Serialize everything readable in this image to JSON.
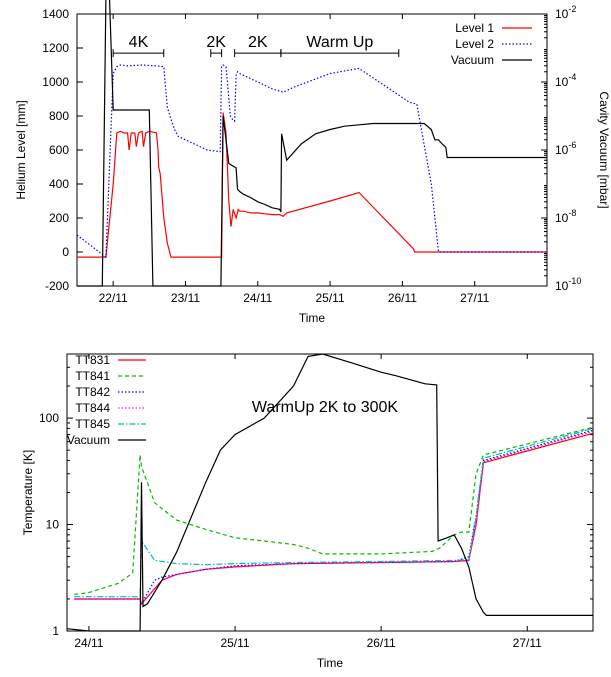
{
  "chart_data": [
    {
      "type": "line",
      "xlabel": "Time",
      "ylabel": "Helium Level [mm]",
      "y2label": "Cavity Vacuum [mbar]",
      "xlim": [
        21.5,
        28.0
      ],
      "ylim": [
        -200,
        1400
      ],
      "y2lim": [
        1e-10,
        0.01
      ],
      "y2scale": "log",
      "grid": false,
      "legend_position": "top-right",
      "x_ticks": [
        {
          "value": 22,
          "label": "22/11"
        },
        {
          "value": 23,
          "label": "23/11"
        },
        {
          "value": 24,
          "label": "24/11"
        },
        {
          "value": 25,
          "label": "25/11"
        },
        {
          "value": 26,
          "label": "26/11"
        },
        {
          "value": 27,
          "label": "27/11"
        }
      ],
      "y_ticks": [
        -200,
        0,
        200,
        400,
        600,
        800,
        1000,
        1200,
        1400
      ],
      "y2_ticks": [
        {
          "value": 1e-10,
          "base": "10",
          "exp": "-10"
        },
        {
          "value": 1e-08,
          "base": "10",
          "exp": "-8"
        },
        {
          "value": 1e-06,
          "base": "10",
          "exp": "-6"
        },
        {
          "value": 0.0001,
          "base": "10",
          "exp": "-4"
        },
        {
          "value": 0.01,
          "base": "10",
          "exp": "-2"
        }
      ],
      "annotations": [
        {
          "text": "4K",
          "x_from": 22.0,
          "x_to": 22.7,
          "y": 1170
        },
        {
          "text": "2K",
          "x_from": 23.35,
          "x_to": 23.5,
          "y": 1170
        },
        {
          "text": "2K",
          "x_from": 23.68,
          "x_to": 24.32,
          "y": 1170
        },
        {
          "text": "Warm Up",
          "x_from": 24.32,
          "x_to": 25.95,
          "y": 1170
        }
      ],
      "series": [
        {
          "name": "Level 1",
          "axis": "left",
          "color": "#ff0000",
          "dash": "solid",
          "x": [
            21.5,
            21.9,
            22.0,
            22.05,
            22.1,
            22.15,
            22.2,
            22.22,
            22.25,
            22.3,
            22.32,
            22.35,
            22.4,
            22.42,
            22.45,
            22.5,
            22.55,
            22.6,
            22.62,
            22.63,
            22.65,
            22.7,
            22.75,
            22.8,
            23.0,
            23.5,
            23.52,
            23.56,
            23.6,
            23.63,
            23.66,
            23.7,
            23.73,
            23.75,
            23.8,
            23.9,
            24.0,
            24.1,
            24.2,
            24.3,
            24.35,
            24.4,
            25.0,
            25.4,
            26.15,
            26.17,
            27.0,
            28.0
          ],
          "y": [
            -30,
            -30,
            400,
            700,
            710,
            700,
            700,
            600,
            700,
            700,
            620,
            700,
            710,
            620,
            700,
            710,
            705,
            700,
            600,
            500,
            460,
            200,
            50,
            -30,
            -30,
            -30,
            820,
            700,
            300,
            150,
            250,
            200,
            250,
            240,
            240,
            230,
            230,
            225,
            220,
            220,
            210,
            230,
            300,
            350,
            20,
            0,
            0,
            0
          ]
        },
        {
          "name": "Level 2",
          "axis": "left",
          "color": "#0000ff",
          "dash": "dotted",
          "x": [
            21.5,
            21.9,
            22.0,
            22.05,
            22.1,
            22.2,
            22.4,
            22.6,
            22.7,
            22.72,
            22.75,
            22.8,
            22.85,
            22.9,
            23.0,
            23.1,
            23.2,
            23.3,
            23.48,
            23.5,
            23.52,
            23.56,
            23.58,
            23.62,
            23.65,
            23.68,
            23.7,
            23.72,
            23.75,
            23.8,
            23.9,
            24.0,
            24.1,
            24.2,
            24.35,
            24.5,
            25.0,
            25.4,
            26.1,
            26.2,
            26.4,
            26.5,
            27.0,
            28.0
          ],
          "y": [
            100,
            -30,
            1050,
            1090,
            1100,
            1095,
            1100,
            1095,
            1090,
            990,
            850,
            780,
            720,
            680,
            660,
            640,
            620,
            600,
            590,
            1090,
            1100,
            1090,
            1000,
            800,
            780,
            770,
            1040,
            1060,
            1050,
            1040,
            1020,
            1000,
            980,
            960,
            940,
            970,
            1050,
            1080,
            880,
            870,
            400,
            0,
            0,
            0
          ]
        },
        {
          "name": "Vacuum",
          "axis": "right",
          "color": "#000000",
          "dash": "solid",
          "x": [
            21.5,
            21.85,
            21.9,
            21.95,
            22.0,
            22.5,
            22.55,
            22.56,
            23.48,
            23.49,
            23.52,
            23.56,
            23.6,
            23.7,
            23.72,
            23.75,
            23.8,
            23.9,
            24.0,
            24.1,
            24.2,
            24.3,
            24.32,
            24.33,
            24.4,
            24.6,
            24.8,
            25.0,
            25.2,
            25.4,
            25.6,
            25.8,
            26.0,
            26.1,
            26.2,
            26.25,
            26.3,
            26.4,
            26.45,
            26.5,
            26.55,
            26.6,
            26.62,
            26.65,
            27.0,
            28.0
          ],
          "y": [
            1e-10,
            1e-10,
            0.03,
            0.03,
            1.5e-05,
            1.5e-05,
            1e-10,
            1e-10,
            1e-10,
            1e-10,
            1e-05,
            2e-06,
            4e-07,
            3e-07,
            7e-08,
            6e-08,
            5e-08,
            4e-08,
            3e-08,
            2.5e-08,
            2e-08,
            1.8e-08,
            1.5e-08,
            3e-06,
            5e-07,
            1.5e-06,
            3e-06,
            4e-06,
            5e-06,
            5.5e-06,
            6e-06,
            6e-06,
            6e-06,
            6e-06,
            6e-06,
            6e-06,
            6e-06,
            4e-06,
            2e-06,
            2e-06,
            1.5e-06,
            1.2e-06,
            6e-07,
            6e-07,
            6e-07,
            6e-07
          ]
        }
      ]
    },
    {
      "type": "line",
      "title": "WarmUp 2K to 300K",
      "xlabel": "Time",
      "ylabel": "Temperature [K]",
      "xlim": [
        23.85,
        27.45
      ],
      "ylim": [
        1,
        400
      ],
      "yscale": "log",
      "grid": false,
      "legend_position": "top-left",
      "x_ticks": [
        {
          "value": 24,
          "label": "24/11"
        },
        {
          "value": 25,
          "label": "25/11"
        },
        {
          "value": 26,
          "label": "26/11"
        },
        {
          "value": 27,
          "label": "27/11"
        }
      ],
      "y_ticks": [
        {
          "value": 1,
          "label": "1"
        },
        {
          "value": 10,
          "label": "10"
        },
        {
          "value": 100,
          "label": "100"
        }
      ],
      "series": [
        {
          "name": "TT831",
          "color": "#ff0000",
          "dash": "solid",
          "x": [
            23.9,
            24.35,
            24.36,
            24.5,
            24.6,
            24.8,
            25.0,
            25.4,
            26.0,
            26.5,
            26.6,
            26.65,
            26.7,
            27.45
          ],
          "y": [
            2.0,
            2.0,
            1.8,
            3.0,
            3.4,
            3.8,
            4.0,
            4.3,
            4.4,
            4.5,
            4.6,
            10.0,
            38.0,
            72.0
          ]
        },
        {
          "name": "TT841",
          "color": "#00bb00",
          "dash": "dashed",
          "x": [
            23.9,
            24.0,
            24.2,
            24.3,
            24.35,
            24.36,
            24.45,
            24.6,
            24.8,
            25.0,
            25.2,
            25.4,
            25.5,
            25.6,
            26.0,
            26.35,
            26.4,
            26.5,
            26.55,
            26.6,
            26.65,
            26.7,
            27.45
          ],
          "y": [
            2.2,
            2.3,
            2.8,
            3.5,
            45.0,
            35.0,
            16.0,
            11.0,
            9.0,
            7.5,
            7.0,
            6.5,
            6.0,
            5.3,
            5.3,
            5.6,
            6.0,
            8.0,
            8.5,
            8.5,
            30.0,
            45.0,
            82.0
          ]
        },
        {
          "name": "TT842",
          "color": "#0000ff",
          "dash": "dotted",
          "x": [
            23.9,
            24.35,
            24.36,
            24.45,
            24.5,
            24.6,
            24.8,
            25.0,
            25.4,
            26.0,
            26.5,
            26.6,
            26.65,
            26.7,
            27.45
          ],
          "y": [
            2.0,
            2.0,
            1.8,
            3.0,
            3.2,
            3.4,
            3.8,
            4.1,
            4.3,
            4.4,
            4.5,
            5.0,
            12.0,
            40.0,
            77.0
          ]
        },
        {
          "name": "TT844",
          "color": "#ff00ff",
          "dash": "dotted",
          "x": [
            23.9,
            24.35,
            24.36,
            24.5,
            24.6,
            24.8,
            25.0,
            25.4,
            26.0,
            26.5,
            26.6,
            26.65,
            26.7,
            27.45
          ],
          "y": [
            2.0,
            2.0,
            1.8,
            3.0,
            3.4,
            3.8,
            4.0,
            4.3,
            4.4,
            4.5,
            4.6,
            10.0,
            39.0,
            75.0
          ]
        },
        {
          "name": "TT845",
          "color": "#00bbbb",
          "dash": "dashdot",
          "x": [
            23.9,
            24.35,
            24.36,
            24.45,
            24.6,
            24.8,
            25.0,
            25.4,
            26.0,
            26.5,
            26.6,
            26.65,
            26.7,
            27.45
          ],
          "y": [
            2.1,
            2.1,
            7.0,
            4.6,
            4.3,
            4.2,
            4.3,
            4.4,
            4.5,
            4.6,
            4.7,
            12.0,
            42.0,
            80.0
          ]
        },
        {
          "name": "Vacuum",
          "color": "#000000",
          "dash": "solid",
          "x": [
            23.85,
            24.0,
            24.3,
            24.35,
            24.36,
            24.37,
            24.4,
            24.5,
            24.6,
            24.8,
            24.9,
            25.0,
            25.2,
            25.4,
            25.5,
            25.6,
            25.8,
            26.0,
            26.1,
            26.3,
            26.38,
            26.39,
            26.45,
            26.5,
            26.55,
            26.6,
            26.65,
            26.7,
            26.72,
            27.0,
            27.45
          ],
          "y": [
            1.05,
            1.0,
            1.0,
            1.0,
            25.0,
            1.7,
            1.8,
            3.0,
            5.5,
            25.0,
            50.0,
            70.0,
            100.0,
            200.0,
            380.0,
            400.0,
            330.0,
            270.0,
            250.0,
            210.0,
            205.0,
            7.0,
            7.5,
            8.0,
            6.0,
            4.0,
            2.0,
            1.5,
            1.4,
            1.4,
            1.4
          ]
        }
      ]
    }
  ]
}
